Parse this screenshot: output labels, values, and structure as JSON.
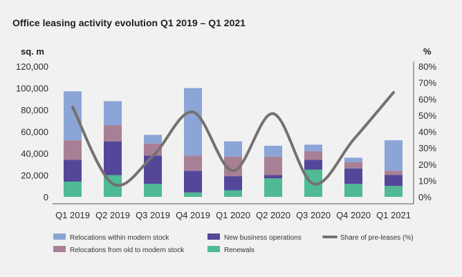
{
  "chart_data": {
    "type": "bar",
    "title": "Office leasing activity evolution Q1 2019 – Q1 2021",
    "y_left_label": "sq. m",
    "y_right_label": "%",
    "ylim_left": [
      0,
      120000
    ],
    "ylim_right": [
      0,
      80
    ],
    "y_left_ticks": [
      "0",
      "20,000",
      "40,000",
      "60,000",
      "80,000",
      "100,000",
      "120,000"
    ],
    "y_right_ticks": [
      "0%",
      "10%",
      "20%",
      "30%",
      "40%",
      "50%",
      "60%",
      "70%",
      "80%"
    ],
    "categories": [
      "Q1 2019",
      "Q2 2019",
      "Q3 2019",
      "Q4 2019",
      "Q1 2020",
      "Q2 2020",
      "Q3 2020",
      "Q4 2020",
      "Q1 2021"
    ],
    "stacked": true,
    "grid": false,
    "legend_position": "bottom",
    "series": [
      {
        "name": "Renewals",
        "color": "#4fba94",
        "values": [
          14000,
          20000,
          12000,
          4000,
          6000,
          17000,
          25000,
          12000,
          10000
        ]
      },
      {
        "name": "New business operations",
        "color": "#54479a",
        "values": [
          20000,
          31000,
          26000,
          20000,
          13000,
          3000,
          9000,
          14000,
          10000
        ]
      },
      {
        "name": "Relocations from old to modern stock",
        "color": "#a88096",
        "values": [
          18000,
          15000,
          11000,
          14000,
          18000,
          17000,
          8000,
          6000,
          4000
        ]
      },
      {
        "name": "Relocations within modern stock",
        "color": "#8ba5d7",
        "values": [
          45000,
          22000,
          8000,
          62000,
          14000,
          10000,
          6000,
          4000,
          28000
        ]
      }
    ],
    "line_series": {
      "name": "Share of pre-leases (%)",
      "color": "#777070",
      "axis": "right",
      "values": [
        55,
        8,
        25,
        52,
        16,
        51,
        8,
        35,
        64
      ]
    },
    "legend": [
      {
        "label": "Relocations within modern stock",
        "kind": "box",
        "color": "#8ba5d7"
      },
      {
        "label": "New business operations",
        "kind": "box",
        "color": "#54479a"
      },
      {
        "label": "Share of pre-leases (%)",
        "kind": "line",
        "color": "#777070"
      },
      {
        "label": "Relocations from old to modern stock",
        "kind": "box",
        "color": "#a88096"
      },
      {
        "label": "Renewals",
        "kind": "box",
        "color": "#4fba94"
      }
    ]
  }
}
